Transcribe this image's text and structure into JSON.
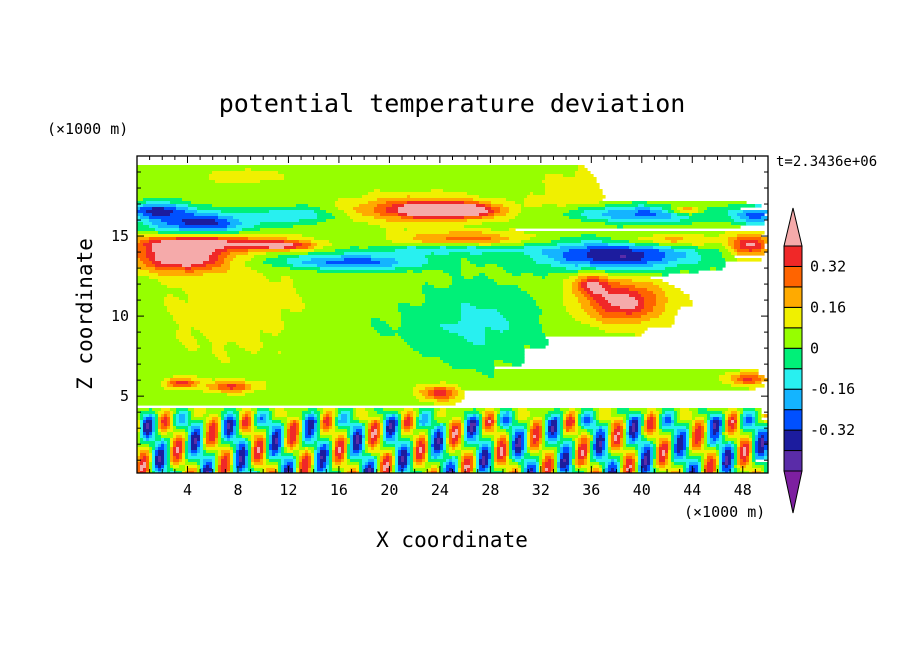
{
  "chart_data": {
    "type": "heatmap",
    "title": "potential temperature deviation",
    "xlabel": "X coordinate",
    "ylabel": "Z coordinate",
    "x_unit": "(×1000 m)",
    "y_unit": "(×1000 m)",
    "time_label": "t=2.3436e+06",
    "xlim": [
      0,
      50
    ],
    "ylim": [
      0.2,
      20
    ],
    "x_ticks": [
      "4",
      "8",
      "12",
      "16",
      "20",
      "24",
      "28",
      "32",
      "36",
      "40",
      "44",
      "48"
    ],
    "x_tick_values": [
      4,
      8,
      12,
      16,
      20,
      24,
      28,
      32,
      36,
      40,
      44,
      48
    ],
    "y_ticks": [
      "5",
      "10",
      "15"
    ],
    "y_tick_values": [
      5,
      10,
      15
    ],
    "colorbar": {
      "levels": [
        -0.48,
        -0.4,
        -0.32,
        -0.24,
        -0.16,
        -0.08,
        0,
        0.08,
        0.16,
        0.24,
        0.32,
        0.4
      ],
      "colors": [
        "#7d1fa0",
        "#5a2ca8",
        "#1c1c9e",
        "#0050ff",
        "#14b4ff",
        "#28f0f0",
        "#00f078",
        "#96ff00",
        "#f0f000",
        "#ffaa00",
        "#ff6400",
        "#f02828",
        "#f5aaaa"
      ],
      "tick_labels": [
        "0.32",
        "0.16",
        "0",
        "-0.16",
        "-0.32"
      ],
      "tick_values": [
        0.32,
        0.16,
        0,
        -0.16,
        -0.32
      ]
    },
    "background_level": 0.04,
    "features": [
      {
        "x": 3.5,
        "z": 13.7,
        "sx": 3.5,
        "sz": 0.9,
        "v": 0.5
      },
      {
        "x": 5.5,
        "z": 14.6,
        "sx": 6,
        "sz": 0.5,
        "v": 0.34
      },
      {
        "x": 5,
        "z": 15.8,
        "sx": 4,
        "sz": 0.7,
        "v": -0.4
      },
      {
        "x": 1.5,
        "z": 16.6,
        "sx": 2.5,
        "sz": 0.5,
        "v": -0.36
      },
      {
        "x": 11.5,
        "z": 14.4,
        "sx": 2.5,
        "sz": 0.3,
        "v": 0.32
      },
      {
        "x": 12.5,
        "z": 16.3,
        "sx": 3,
        "sz": 0.5,
        "v": -0.2
      },
      {
        "x": 17,
        "z": 13.4,
        "sx": 6,
        "sz": 0.5,
        "v": -0.32
      },
      {
        "x": 22,
        "z": 16.7,
        "sx": 5,
        "sz": 0.8,
        "v": 0.28
      },
      {
        "x": 25,
        "z": 16.6,
        "sx": 3.5,
        "sz": 0.45,
        "v": 0.55
      },
      {
        "x": 26,
        "z": 14.8,
        "sx": 5,
        "sz": 0.5,
        "v": 0.24
      },
      {
        "x": 25,
        "z": 14.2,
        "sx": 6,
        "sz": 0.35,
        "v": -0.2
      },
      {
        "x": 8.5,
        "z": 18.7,
        "sx": 2.5,
        "sz": 0.4,
        "v": 0.12
      },
      {
        "x": 38,
        "z": 13.8,
        "sx": 6,
        "sz": 0.9,
        "v": -0.44
      },
      {
        "x": 42,
        "z": 14.7,
        "sx": 4,
        "sz": 0.4,
        "v": 0.22
      },
      {
        "x": 40,
        "z": 16.4,
        "sx": 6,
        "sz": 0.5,
        "v": -0.3
      },
      {
        "x": 43.5,
        "z": 16.6,
        "sx": 1.5,
        "sz": 0.3,
        "v": 0.3
      },
      {
        "x": 48.5,
        "z": 14.4,
        "sx": 1.5,
        "sz": 0.7,
        "v": 0.38
      },
      {
        "x": 49,
        "z": 16.3,
        "sx": 1.5,
        "sz": 0.6,
        "v": -0.3
      },
      {
        "x": 38.5,
        "z": 10.9,
        "sx": 3.2,
        "sz": 1.3,
        "v": 0.4
      },
      {
        "x": 36,
        "z": 12,
        "sx": 1.5,
        "sz": 0.7,
        "v": 0.28
      },
      {
        "x": 34.5,
        "z": 17.6,
        "sx": 3,
        "sz": 1.5,
        "v": 0.1
      },
      {
        "x": 27,
        "z": 9.5,
        "sx": 5,
        "sz": 2.5,
        "v": -0.14
      },
      {
        "x": 16,
        "z": 9.3,
        "sx": 5,
        "sz": 1.2,
        "v": -0.04
      },
      {
        "x": 8,
        "z": 10.5,
        "sx": 6,
        "sz": 3,
        "v": 0.09
      },
      {
        "x": 24,
        "z": 5.2,
        "sx": 1.5,
        "sz": 0.5,
        "v": 0.32
      },
      {
        "x": 7.5,
        "z": 5.6,
        "sx": 1.8,
        "sz": 0.35,
        "v": 0.3
      },
      {
        "x": 3.5,
        "z": 5.8,
        "sx": 1.2,
        "sz": 0.3,
        "v": 0.34
      },
      {
        "x": 48.5,
        "z": 6.1,
        "sx": 1.5,
        "sz": 0.4,
        "v": 0.3
      }
    ],
    "lower_band": {
      "z_top": 3.8,
      "period": 3.2,
      "amplitude": 0.42
    }
  }
}
